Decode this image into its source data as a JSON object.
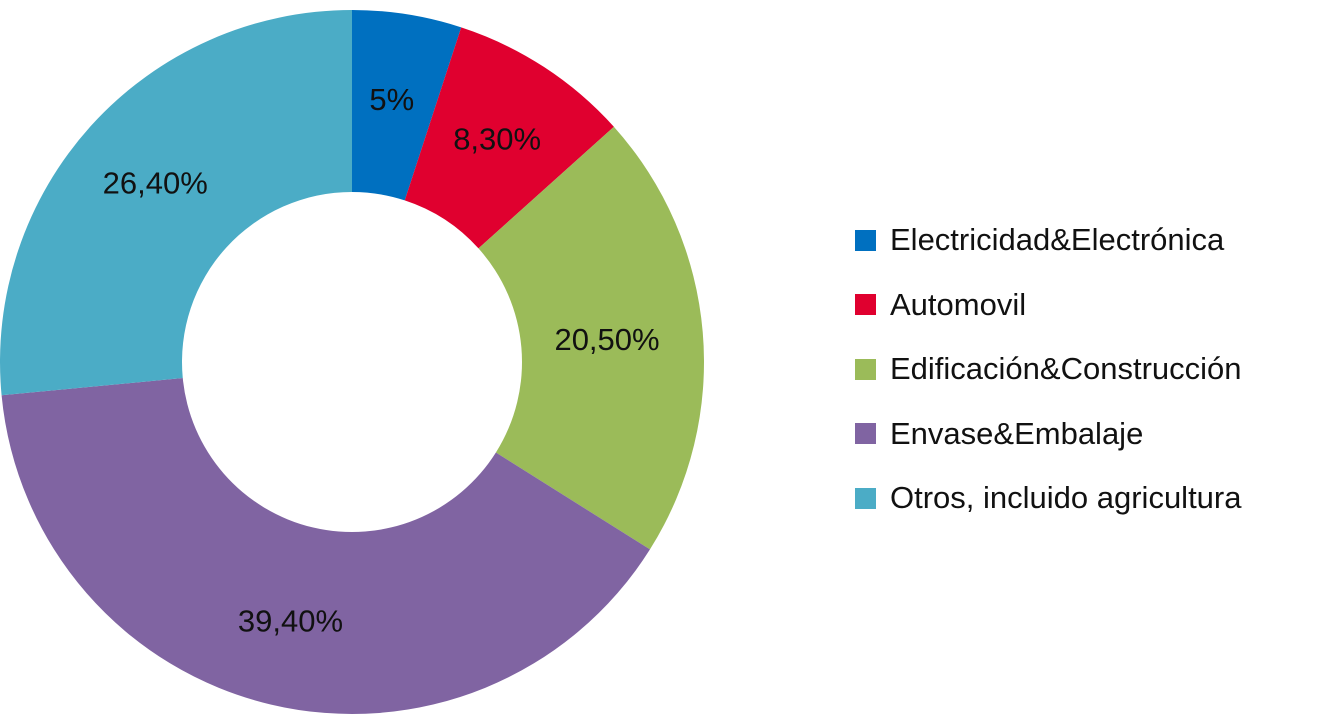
{
  "chart_data": {
    "type": "pie",
    "variant": "donut",
    "title": "",
    "legend_position": "right",
    "slices": [
      {
        "name": "Electricidad&Electrónica",
        "value": 5.0,
        "label": "5%",
        "color": "#0070C0"
      },
      {
        "name": "Automovil",
        "value": 8.3,
        "label": "8,30%",
        "color": "#E0002F"
      },
      {
        "name": "Edificación&Construcción",
        "value": 20.5,
        "label": "20,50%",
        "color": "#9BBB59"
      },
      {
        "name": "Envase&Embalaje",
        "value": 39.4,
        "label": "39,40%",
        "color": "#8064A2"
      },
      {
        "name": "Otros, incluido agricultura",
        "value": 26.4,
        "label": "26,40%",
        "color": "#4BACC6"
      }
    ]
  }
}
